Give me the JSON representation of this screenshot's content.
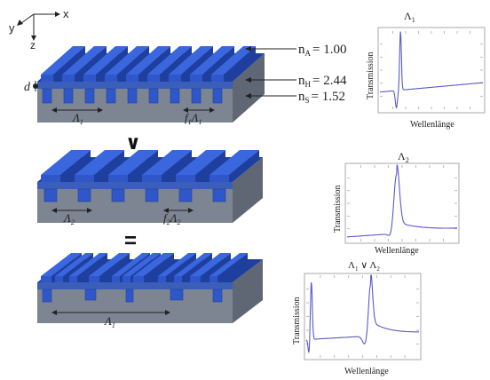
{
  "axes": {
    "x": "x",
    "y": "y",
    "z": "z"
  },
  "layers": {
    "air": "n",
    "air_sub": "A",
    "air_val": "= 1.00",
    "film": "n",
    "film_sub": "H",
    "film_val": "= 2.44",
    "sub": "n",
    "sub_sub": "S",
    "sub_val": "= 1.52"
  },
  "thickness_label": "d",
  "periods": {
    "g1_period": "Λ",
    "g1_period_sub": "1",
    "g1_fill": "f",
    "g1_fill_sub": "1",
    "g1_fill_L": "Λ",
    "g1_fill_Lsub": "1",
    "g2_period": "Λ",
    "g2_period_sub": "2",
    "g2_fill": "f",
    "g2_fill_sub": "2",
    "g2_fill_L": "Λ",
    "g2_fill_Lsub": "2",
    "g3_period": "Λ",
    "g3_period_sub": "1"
  },
  "operators": {
    "or": "∨",
    "equals": "="
  },
  "plots": [
    {
      "title": "Λ",
      "title_sub": "1",
      "ylabel": "Transmission",
      "xlabel": "Wellenlänge"
    },
    {
      "title": "Λ",
      "title_sub": "2",
      "ylabel": "Transmission",
      "xlabel": "Wellenlänge"
    },
    {
      "title": "Λ",
      "title_sub": "1",
      "title_mid": " ∨ Λ",
      "title_sub2": "2",
      "ylabel": "Transmission",
      "xlabel": "Wellenlänge"
    }
  ],
  "colors": {
    "grating": "#2f57c9",
    "grating_top": "#3a66de",
    "grating_side": "#1e3f9e",
    "film": "#3b5fb8",
    "substrate_front": "#7d8593",
    "substrate_top": "#9aa1ad",
    "substrate_side": "#5f6674",
    "curve": "#5a5ac8"
  }
}
